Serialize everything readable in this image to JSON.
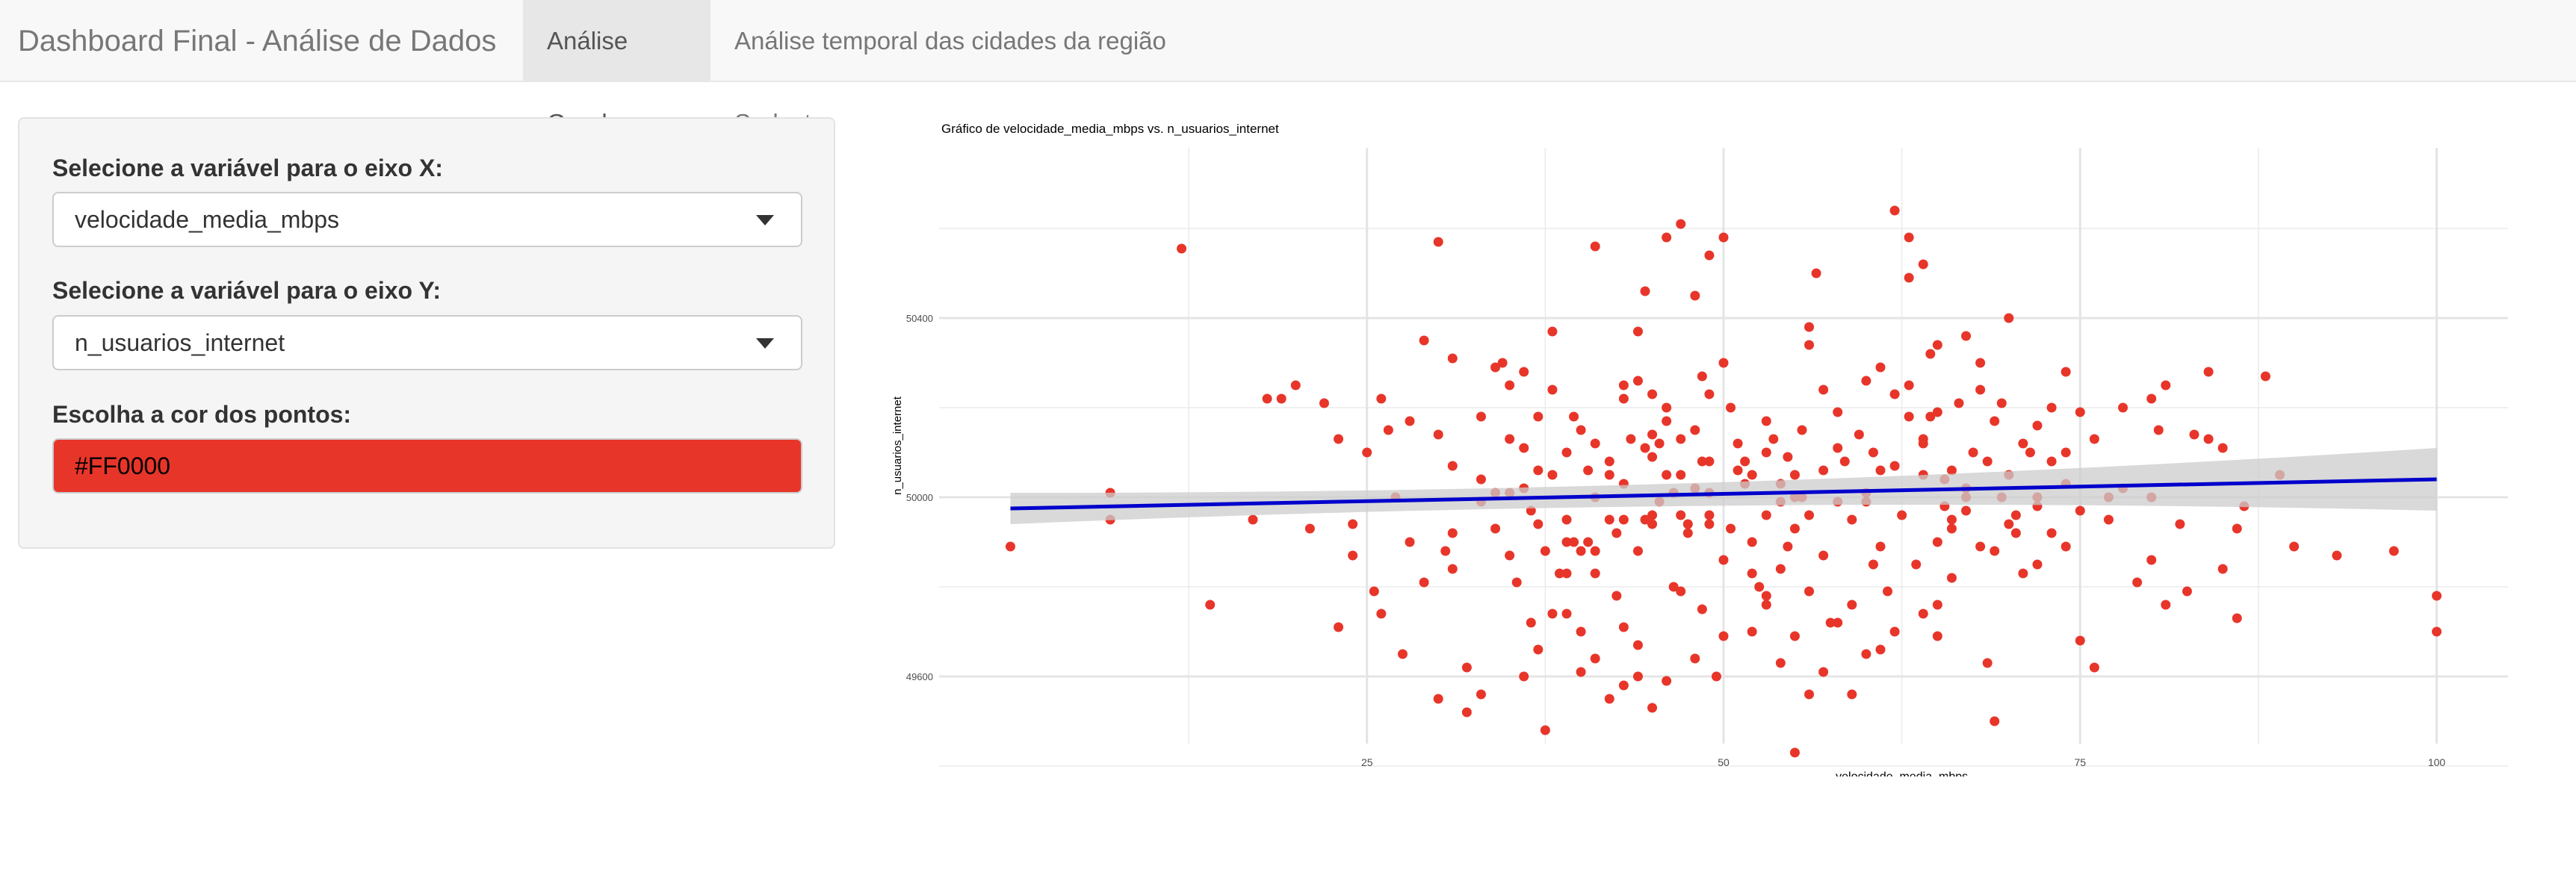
{
  "app": {
    "title": "Dashboard Final - Análise de Dados",
    "tabs": [
      "Análise Geral",
      "Análise temporal das cidades da região Sudeste"
    ],
    "active_tab": 0
  },
  "sidebar": {
    "x_label": "Selecione a variável para o eixo X:",
    "x_value": "velocidade_media_mbps",
    "y_label": "Selecione a variável para o eixo Y:",
    "y_value": "n_usuarios_internet",
    "color_label": "Escolha a cor dos pontos:",
    "color_value": "#FF0000"
  },
  "colors": {
    "point": "#e8352a",
    "trend_line": "#0000cc",
    "confidence_band": "#cccccc",
    "grid": "#ebebeb"
  },
  "chart_data": {
    "type": "scatter",
    "title": "Gráfico de velocidade_media_mbps vs. n_usuarios_internet",
    "xlabel": "velocidade_media_mbps",
    "ylabel": "n_usuarios_internet",
    "xlim": [
      -5,
      105
    ],
    "ylim": [
      49450,
      50780
    ],
    "x_ticks": [
      25,
      50,
      75,
      100
    ],
    "y_ticks": [
      49600,
      50000,
      50400
    ],
    "grid": true,
    "smooth": {
      "method": "linear",
      "x": [
        0,
        100
      ],
      "y": [
        49975,
        50040
      ],
      "ci_halfwidth_start": 35,
      "ci_halfwidth_end": 70,
      "ci_halfwidth_mid": 10
    },
    "points": [
      [
        12,
        50555
      ],
      [
        0,
        49890
      ],
      [
        7,
        50010
      ],
      [
        7,
        49950
      ],
      [
        20,
        50250
      ],
      [
        22,
        50210
      ],
      [
        14,
        49760
      ],
      [
        17,
        49950
      ],
      [
        23,
        49710
      ],
      [
        24,
        49870
      ],
      [
        25,
        50100
      ],
      [
        26,
        50220
      ],
      [
        26.5,
        50150
      ],
      [
        24,
        49940
      ],
      [
        28,
        50170
      ],
      [
        27,
        50000
      ],
      [
        30,
        50570
      ],
      [
        30,
        50140
      ],
      [
        31,
        49920
      ],
      [
        30.5,
        49880
      ],
      [
        31,
        49840
      ],
      [
        32,
        49620
      ],
      [
        32,
        49520
      ],
      [
        33,
        49560
      ],
      [
        34,
        49930
      ],
      [
        34,
        50290
      ],
      [
        34.5,
        50300
      ],
      [
        35,
        50130
      ],
      [
        35.5,
        49810
      ],
      [
        36,
        50020
      ],
      [
        36,
        50110
      ],
      [
        36.5,
        49970
      ],
      [
        37,
        50060
      ],
      [
        37,
        49940
      ],
      [
        37.5,
        49880
      ],
      [
        38,
        50240
      ],
      [
        38,
        50050
      ],
      [
        38.5,
        49830
      ],
      [
        39,
        49950
      ],
      [
        39,
        49740
      ],
      [
        39.5,
        50180
      ],
      [
        40,
        50150
      ],
      [
        40,
        49880
      ],
      [
        40.5,
        49900
      ],
      [
        41,
        50000
      ],
      [
        41,
        49830
      ],
      [
        42,
        49950
      ],
      [
        37.5,
        49480
      ],
      [
        38,
        50370
      ],
      [
        39,
        49900
      ],
      [
        39.5,
        49900
      ],
      [
        40,
        49700
      ],
      [
        40.5,
        50060
      ],
      [
        41,
        49880
      ],
      [
        42,
        50050
      ],
      [
        42.5,
        49920
      ],
      [
        43,
        50220
      ],
      [
        43,
        50250
      ],
      [
        43.5,
        50130
      ],
      [
        44,
        49880
      ],
      [
        44.5,
        49950
      ],
      [
        45,
        49940
      ],
      [
        45,
        50140
      ],
      [
        41,
        50560
      ],
      [
        42,
        50080
      ],
      [
        43,
        49950
      ],
      [
        43,
        49710
      ],
      [
        44,
        50370
      ],
      [
        44.5,
        50110
      ],
      [
        45,
        50230
      ],
      [
        45.5,
        50120
      ],
      [
        46,
        50050
      ],
      [
        46.5,
        50010
      ],
      [
        47,
        50130
      ],
      [
        47,
        49790
      ],
      [
        47.5,
        49940
      ],
      [
        48,
        50150
      ],
      [
        48.5,
        49750
      ],
      [
        49,
        50080
      ],
      [
        42,
        49550
      ],
      [
        43,
        49580
      ],
      [
        44,
        49670
      ],
      [
        44.5,
        50460
      ],
      [
        45,
        49530
      ],
      [
        45,
        49960
      ],
      [
        45.5,
        49990
      ],
      [
        46,
        50170
      ],
      [
        46.5,
        49800
      ],
      [
        47,
        49960
      ],
      [
        47.5,
        49920
      ],
      [
        48,
        50020
      ],
      [
        48.5,
        50080
      ],
      [
        49,
        49940
      ],
      [
        49.5,
        49600
      ],
      [
        50,
        49860
      ],
      [
        49,
        50540
      ],
      [
        50,
        50580
      ],
      [
        50.5,
        49930
      ],
      [
        50,
        50300
      ],
      [
        51,
        50120
      ],
      [
        51.5,
        50030
      ],
      [
        52,
        49900
      ],
      [
        52.5,
        49800
      ],
      [
        53,
        50170
      ],
      [
        53.5,
        50130
      ],
      [
        54,
        49990
      ],
      [
        54.5,
        49890
      ],
      [
        55,
        50050
      ],
      [
        55,
        49690
      ],
      [
        55.5,
        50000
      ],
      [
        56,
        49790
      ],
      [
        46,
        50580
      ],
      [
        47,
        50610
      ],
      [
        48,
        50450
      ],
      [
        48.5,
        50270
      ],
      [
        49,
        50230
      ],
      [
        49,
        49960
      ],
      [
        50.5,
        50200
      ],
      [
        51.5,
        50080
      ],
      [
        52,
        50050
      ],
      [
        52,
        49830
      ],
      [
        53,
        49760
      ],
      [
        53,
        49960
      ],
      [
        54,
        49840
      ],
      [
        54.5,
        50090
      ],
      [
        55,
        49930
      ],
      [
        55.5,
        50150
      ],
      [
        56,
        50340
      ],
      [
        56,
        50380
      ],
      [
        56.5,
        50500
      ],
      [
        57,
        50240
      ],
      [
        57,
        49870
      ],
      [
        57.5,
        49720
      ],
      [
        58,
        50190
      ],
      [
        58.5,
        50080
      ],
      [
        59,
        49950
      ],
      [
        59,
        49760
      ],
      [
        59.5,
        50140
      ],
      [
        60,
        50010
      ],
      [
        60.5,
        49850
      ],
      [
        61,
        50060
      ],
      [
        61,
        49890
      ],
      [
        61.5,
        49790
      ],
      [
        55,
        49430
      ],
      [
        57,
        49610
      ],
      [
        59,
        49560
      ],
      [
        60,
        49990
      ],
      [
        60.5,
        50100
      ],
      [
        61,
        50290
      ],
      [
        62,
        50070
      ],
      [
        62.5,
        49960
      ],
      [
        63,
        50250
      ],
      [
        63.5,
        49850
      ],
      [
        64,
        50130
      ],
      [
        64.5,
        50180
      ],
      [
        65,
        49900
      ],
      [
        65,
        49760
      ],
      [
        65.5,
        49980
      ],
      [
        66,
        50060
      ],
      [
        62,
        50640
      ],
      [
        63,
        50490
      ],
      [
        64,
        50520
      ],
      [
        64.5,
        50320
      ],
      [
        65,
        50190
      ],
      [
        65.5,
        50040
      ],
      [
        66,
        49930
      ],
      [
        66.5,
        50210
      ],
      [
        67,
        50360
      ],
      [
        67,
        49970
      ],
      [
        67.5,
        50100
      ],
      [
        68,
        50240
      ],
      [
        68,
        49890
      ],
      [
        68.5,
        49630
      ],
      [
        69,
        50170
      ],
      [
        69.5,
        50000
      ],
      [
        66,
        49950
      ],
      [
        67,
        50000
      ],
      [
        68,
        50300
      ],
      [
        68.5,
        50080
      ],
      [
        69,
        49880
      ],
      [
        69.5,
        50210
      ],
      [
        70,
        50050
      ],
      [
        70.5,
        49960
      ],
      [
        71,
        50120
      ],
      [
        71,
        49830
      ],
      [
        72,
        50000
      ],
      [
        72,
        50160
      ],
      [
        73,
        49920
      ],
      [
        73,
        50080
      ],
      [
        74,
        50030
      ],
      [
        75,
        49970
      ],
      [
        63,
        50580
      ],
      [
        64,
        50120
      ],
      [
        66,
        49820
      ],
      [
        67,
        50020
      ],
      [
        69,
        49500
      ],
      [
        70,
        49940
      ],
      [
        70.5,
        49920
      ],
      [
        71.5,
        50100
      ],
      [
        72,
        49980
      ],
      [
        73,
        50200
      ],
      [
        74,
        49890
      ],
      [
        76,
        50130
      ],
      [
        77,
        49950
      ],
      [
        78,
        50020
      ],
      [
        80,
        50000
      ],
      [
        80,
        49860
      ],
      [
        74,
        50280
      ],
      [
        75,
        49680
      ],
      [
        76,
        49620
      ],
      [
        77,
        50000
      ],
      [
        79,
        49810
      ],
      [
        80,
        50220
      ],
      [
        81,
        50250
      ],
      [
        81,
        49760
      ],
      [
        83,
        50140
      ],
      [
        84,
        50280
      ],
      [
        84,
        50130
      ],
      [
        85,
        49840
      ],
      [
        86,
        49930
      ],
      [
        86,
        49730
      ],
      [
        88,
        50270
      ],
      [
        90,
        49890
      ],
      [
        65,
        50340
      ],
      [
        70,
        50400
      ],
      [
        72,
        49850
      ],
      [
        74,
        50100
      ],
      [
        75,
        50190
      ],
      [
        78,
        50200
      ],
      [
        80.5,
        50150
      ],
      [
        82,
        49940
      ],
      [
        82.5,
        49790
      ],
      [
        85,
        50110
      ],
      [
        86.5,
        49980
      ],
      [
        89,
        50050
      ],
      [
        93,
        49870
      ],
      [
        97,
        49880
      ],
      [
        100,
        49700
      ],
      [
        100,
        49780
      ],
      [
        29,
        50350
      ],
      [
        31,
        50310
      ],
      [
        33,
        50180
      ],
      [
        35,
        50250
      ],
      [
        36,
        50280
      ],
      [
        27.5,
        49650
      ],
      [
        28,
        49900
      ],
      [
        29,
        49810
      ],
      [
        30,
        49550
      ],
      [
        26,
        49740
      ],
      [
        25.5,
        49790
      ],
      [
        23,
        50130
      ],
      [
        21,
        49930
      ],
      [
        19,
        50220
      ],
      [
        18,
        50220
      ],
      [
        31,
        50070
      ],
      [
        33,
        50040
      ],
      [
        34,
        50010
      ],
      [
        35,
        49870
      ],
      [
        36,
        49600
      ],
      [
        36.5,
        49720
      ],
      [
        37,
        49660
      ],
      [
        38,
        49740
      ],
      [
        39,
        49830
      ],
      [
        40,
        49610
      ],
      [
        41,
        49640
      ],
      [
        42.5,
        49780
      ],
      [
        44,
        49600
      ],
      [
        46,
        49590
      ],
      [
        48,
        49640
      ],
      [
        50,
        49690
      ],
      [
        52,
        49700
      ],
      [
        53,
        49780
      ],
      [
        54,
        49630
      ],
      [
        56,
        49560
      ],
      [
        58,
        49720
      ],
      [
        60,
        49650
      ],
      [
        61,
        49660
      ],
      [
        62,
        49700
      ],
      [
        64,
        49740
      ],
      [
        65,
        49690
      ],
      [
        58,
        49990
      ],
      [
        56,
        49960
      ],
      [
        54,
        50030
      ],
      [
        53,
        50100
      ],
      [
        51,
        50060
      ],
      [
        49,
        50010
      ],
      [
        47,
        50050
      ],
      [
        45,
        50090
      ],
      [
        43,
        50030
      ],
      [
        41,
        50120
      ],
      [
        39,
        50100
      ],
      [
        37,
        50180
      ],
      [
        35,
        50010
      ],
      [
        33,
        49990
      ],
      [
        60,
        50260
      ],
      [
        62,
        50230
      ],
      [
        63,
        50180
      ],
      [
        64,
        50050
      ],
      [
        58,
        50110
      ],
      [
        57,
        50060
      ],
      [
        55,
        50000
      ],
      [
        46,
        50200
      ],
      [
        44,
        50260
      ]
    ]
  }
}
